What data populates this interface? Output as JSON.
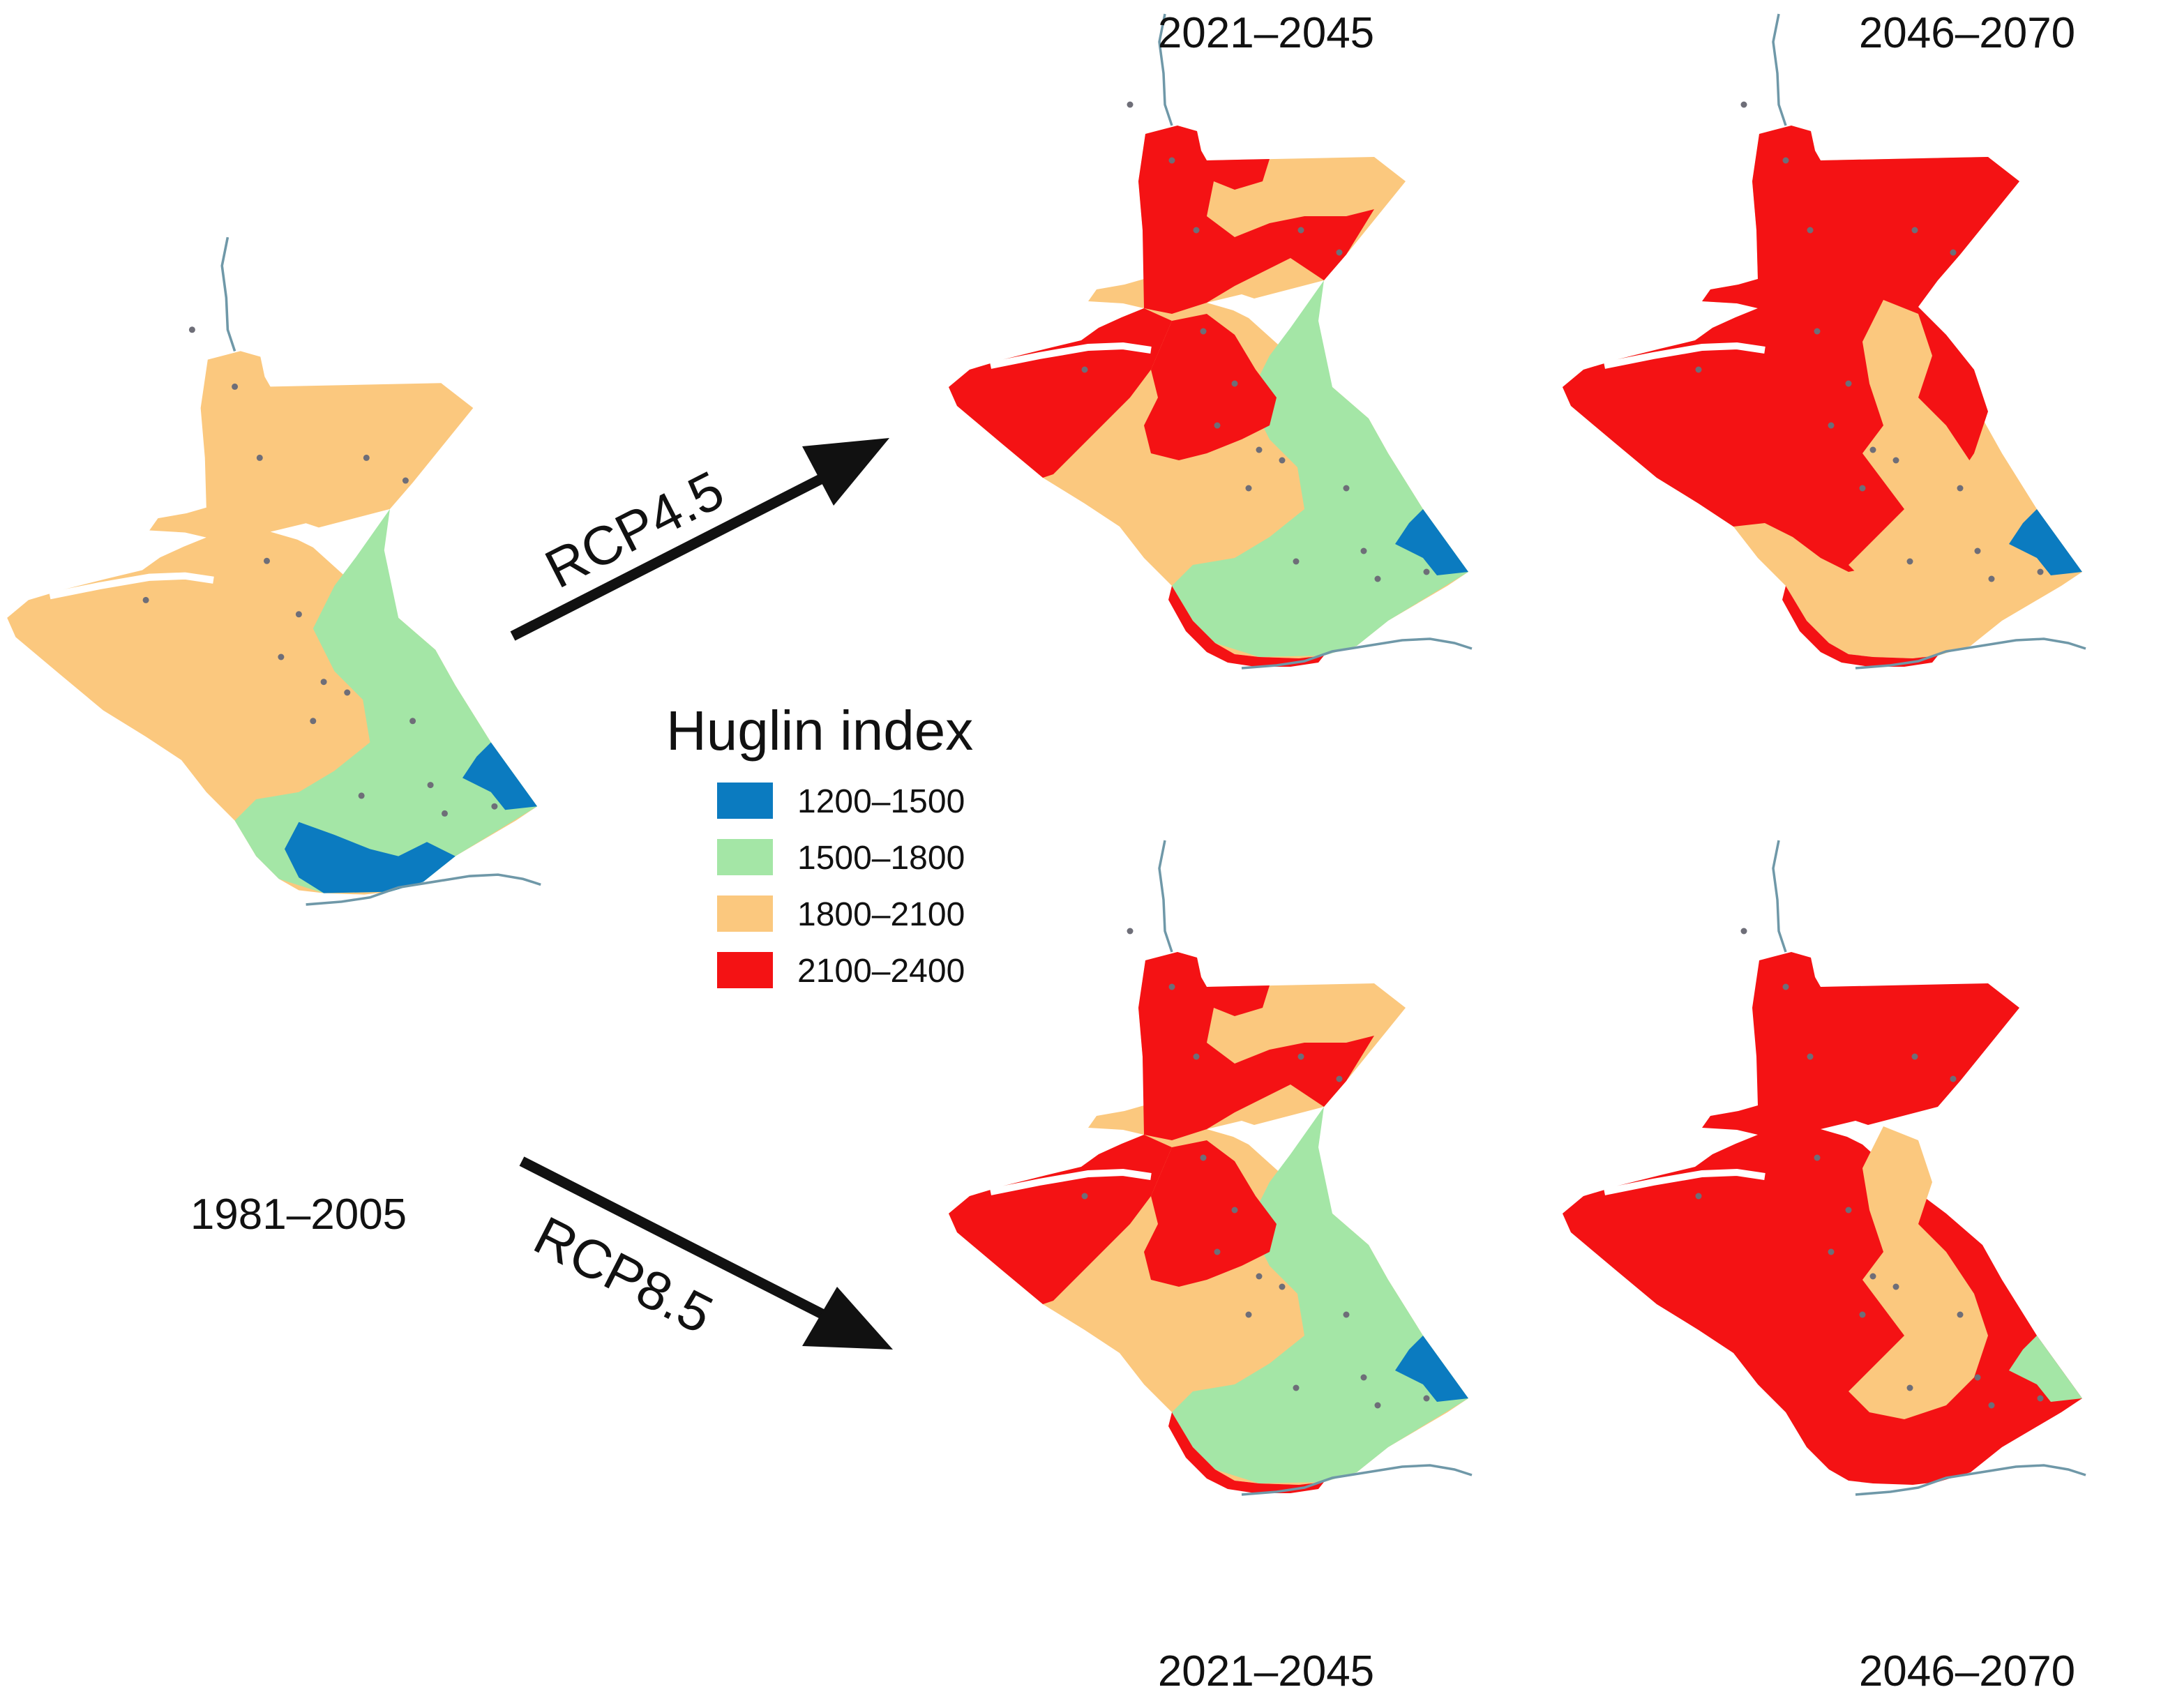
{
  "legend": {
    "title": "Huglin index",
    "classes": [
      {
        "label": "1200–1500",
        "color": "#0b7bc0"
      },
      {
        "label": "1500–1800",
        "color": "#a4e6a6"
      },
      {
        "label": "1800–2100",
        "color": "#fbc87e"
      },
      {
        "label": "2100–2400",
        "color": "#f41214"
      }
    ]
  },
  "scenarios": {
    "upper": "RCP4.5",
    "lower": "RCP8.5"
  },
  "maps": [
    {
      "id": "baseline",
      "period": "1981–2005",
      "dominant_class": "1800–2100"
    },
    {
      "id": "rcp45-2021-2045",
      "period": "2021–2045",
      "scenario": "RCP4.5",
      "dominant_class": "1800–2100"
    },
    {
      "id": "rcp45-2046-2070",
      "period": "2046–2070",
      "scenario": "RCP4.5",
      "dominant_class": "2100–2400"
    },
    {
      "id": "rcp85-2021-2045",
      "period": "2021–2045",
      "scenario": "RCP8.5",
      "dominant_class": "1800–2100"
    },
    {
      "id": "rcp85-2046-2070",
      "period": "2046–2070",
      "scenario": "RCP8.5",
      "dominant_class": "2100–2400"
    }
  ],
  "colors": {
    "arrow": "#111111",
    "river": "#6f98a8",
    "station": "#6e6e78"
  }
}
